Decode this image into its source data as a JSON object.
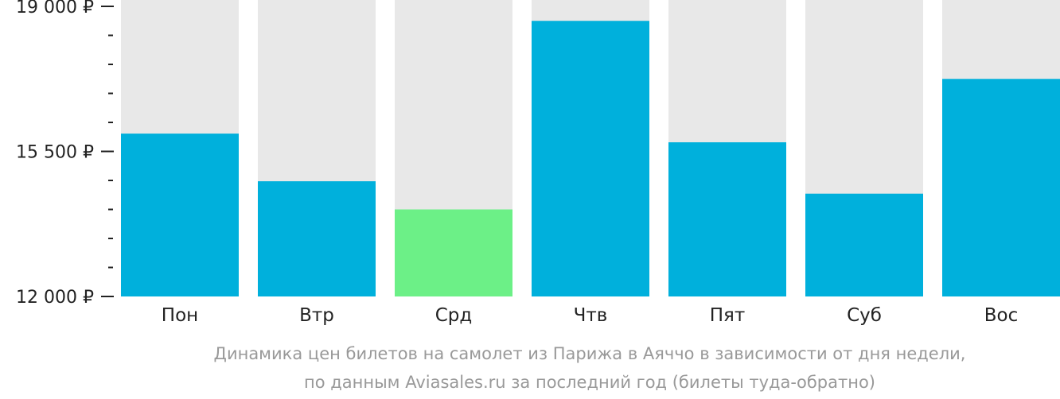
{
  "chart_data": {
    "type": "bar",
    "categories": [
      "Пон",
      "Втр",
      "Срд",
      "Чтв",
      "Пят",
      "Суб",
      "Вос"
    ],
    "values": [
      15930,
      14780,
      14100,
      18650,
      15720,
      14480,
      17250
    ],
    "ylim": [
      12000,
      19000
    ],
    "yticks": [
      {
        "value": 19000,
        "label": "19 000 ₽"
      },
      {
        "value": 15500,
        "label": "15 500 ₽"
      },
      {
        "value": 12000,
        "label": "12 000 ₽"
      }
    ],
    "minor_ticks": [
      18300,
      17600,
      16900,
      16200,
      14800,
      14100,
      13400,
      12700
    ],
    "highlight_index": 2,
    "grid": false,
    "legend": "none",
    "caption": [
      "Динамика цен билетов на самолет из Парижа в Аяччо в зависимости от дня недели,",
      "по данным Aviasales.ru за последний год (билеты туда-обратно)"
    ]
  },
  "colors": {
    "bar": "#00b0dc",
    "highlight": "#6cf087",
    "background_bar": "#e8e8e8",
    "axis": "#222222",
    "caption": "#999999"
  }
}
